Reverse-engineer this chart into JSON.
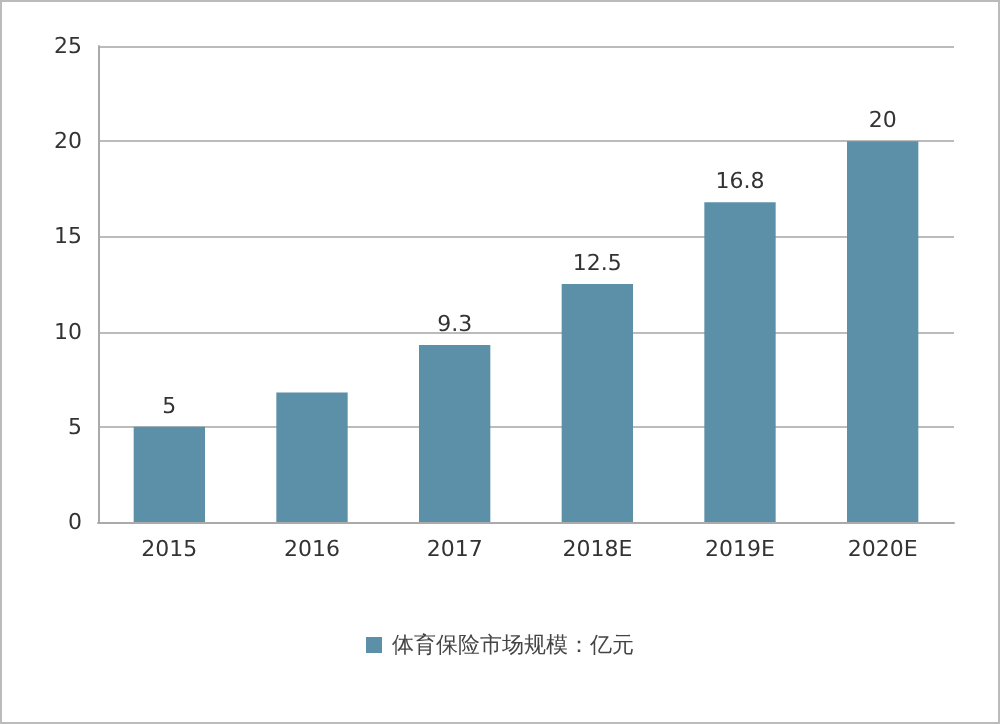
{
  "chart_data": {
    "type": "bar",
    "categories": [
      "2015",
      "2016",
      "2017",
      "2018E",
      "2019E",
      "2020E"
    ],
    "series": [
      {
        "name": "体育保险市场规模：亿元",
        "color": "#5b90a8",
        "values": [
          5,
          6.8,
          9.3,
          12.5,
          16.8,
          20
        ],
        "value_labels": [
          "5",
          null,
          "9.3",
          "12.5",
          "16.8",
          "20"
        ]
      }
    ],
    "ylim": [
      0,
      25
    ],
    "yticks": [
      0,
      5,
      10,
      15,
      20,
      25
    ],
    "grid": "y",
    "legend": "bottom"
  }
}
